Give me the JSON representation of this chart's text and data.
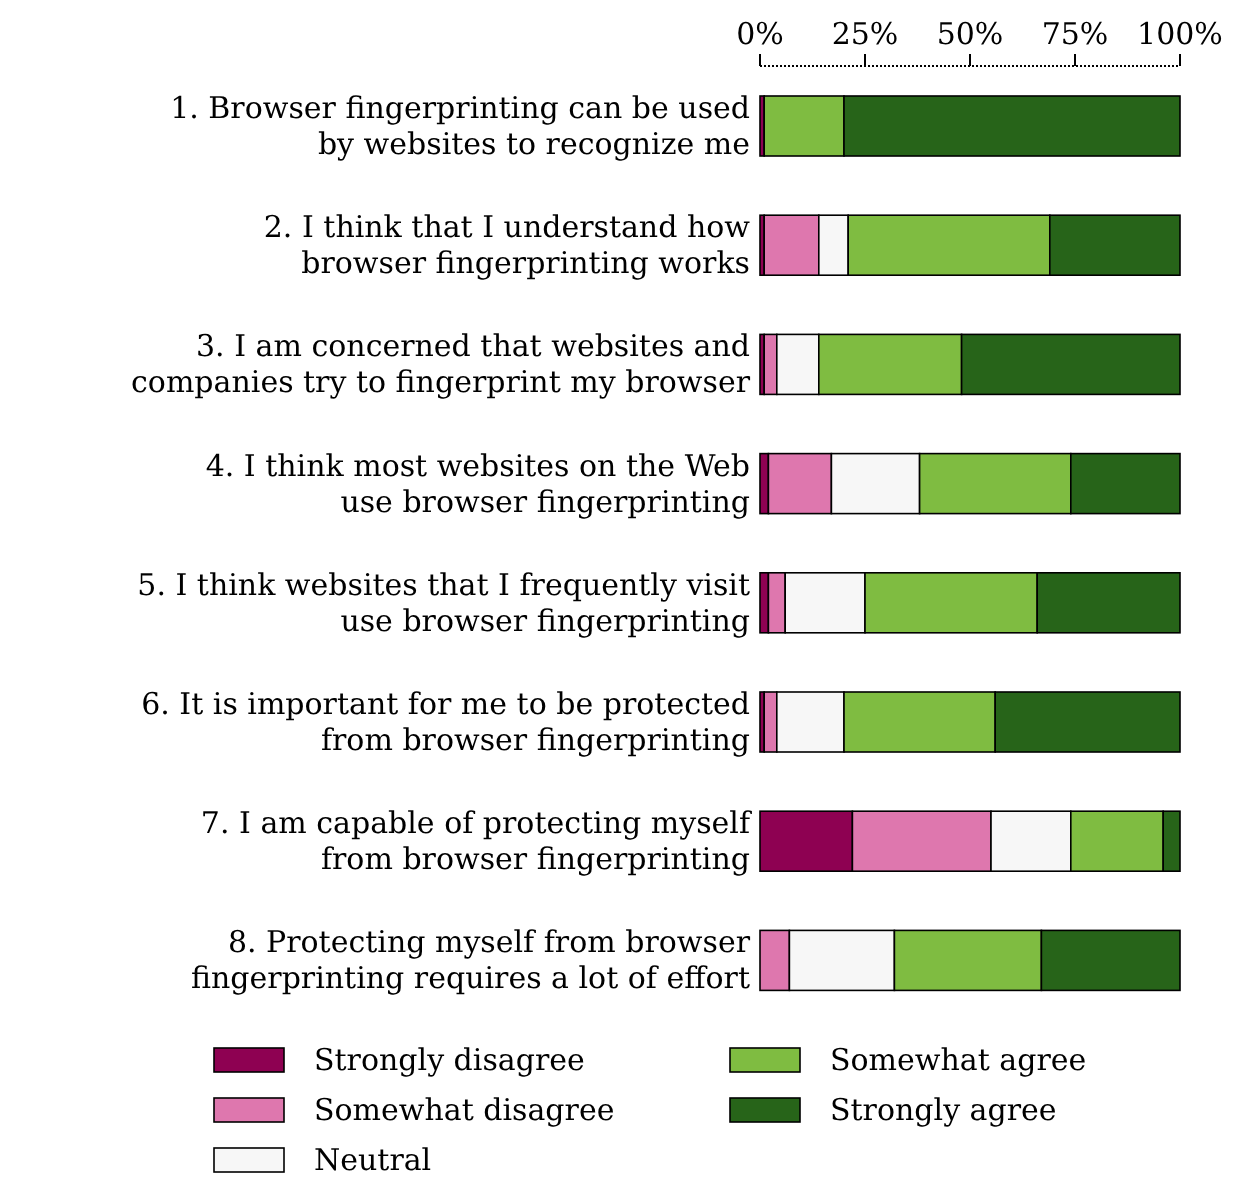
{
  "chart_data": {
    "type": "bar",
    "orientation": "horizontal",
    "stacked": true,
    "grid": false,
    "legend": "bottom",
    "categories": [
      "1. Browser fingerprinting can be used\nby websites to recognize me",
      "2. I think that I understand how\nbrowser fingerprinting works",
      "3. I am concerned that websites and\ncompanies try to fingerprint my browser",
      "4. I think most websites on the Web\nuse browser fingerprinting",
      "5. I think websites that I frequently visit\nuse browser fingerprinting",
      "6. It is important for me to be protected\nfrom browser fingerprinting",
      "7. I am capable of protecting myself\nfrom browser fingerprinting",
      "8. Protecting myself from browser\nfingerprinting requires a lot of effort"
    ],
    "xlim": [
      0,
      100
    ],
    "xticks": [
      {
        "value": 0,
        "label": "0%"
      },
      {
        "value": 25,
        "label": "25%"
      },
      {
        "value": 50,
        "label": "50%"
      },
      {
        "value": 75,
        "label": "75%"
      },
      {
        "value": 100,
        "label": "100%"
      }
    ],
    "series": [
      {
        "name": "Strongly disagree",
        "color": "#8e0152",
        "values": [
          1,
          1,
          1,
          2,
          2,
          1,
          22,
          0
        ]
      },
      {
        "name": "Somewhat disagree",
        "color": "#de77ae",
        "values": [
          0,
          13,
          3,
          15,
          4,
          3,
          33,
          7
        ]
      },
      {
        "name": "Neutral",
        "color": "#f7f7f7",
        "values": [
          0,
          7,
          10,
          21,
          19,
          16,
          19,
          25
        ]
      },
      {
        "name": "Somewhat agree",
        "color": "#7fbc41",
        "values": [
          19,
          48,
          34,
          36,
          41,
          36,
          22,
          35
        ]
      },
      {
        "name": "Strongly agree",
        "color": "#276419",
        "values": [
          80,
          31,
          52,
          26,
          34,
          44,
          4,
          33
        ]
      }
    ]
  }
}
